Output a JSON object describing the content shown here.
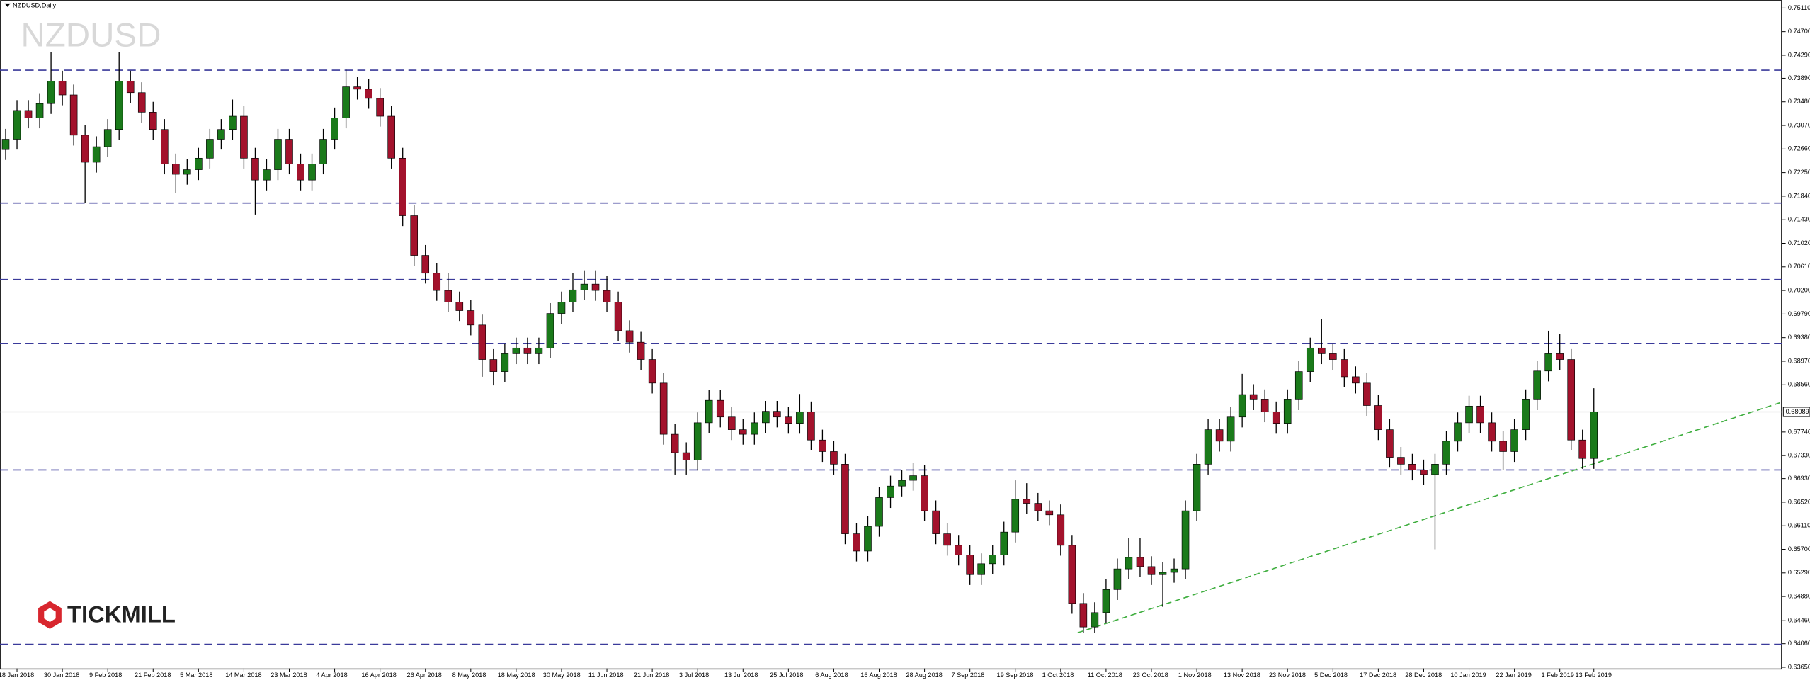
{
  "chart_data": {
    "type": "candlestick",
    "title": "NZDUSD,Daily",
    "watermark": "NZDUSD",
    "logo": "TICKMILL",
    "bull_color": "#1a7a1a",
    "bear_color": "#a3122c",
    "level_color": "#3a3a9a",
    "trend_color": "#3fae3f",
    "open": [
      0.7265,
      0.7283,
      0.7333,
      0.732,
      0.7345,
      0.7384,
      0.736,
      0.729,
      0.7243,
      0.727,
      0.73,
      0.7384,
      0.7364,
      0.733,
      0.73,
      0.724,
      0.7222,
      0.723,
      0.725,
      0.7283,
      0.73,
      0.7323,
      0.725,
      0.7212,
      0.723,
      0.7283,
      0.724,
      0.7212,
      0.724,
      0.7283,
      0.732,
      0.7374,
      0.737,
      0.7354,
      0.7323,
      0.725,
      0.715,
      0.7081,
      0.705,
      0.702,
      0.7,
      0.6985,
      0.696,
      0.69,
      0.6879,
      0.691,
      0.692,
      0.691,
      0.692,
      0.698,
      0.7,
      0.7021,
      0.7031,
      0.702,
      0.7,
      0.695,
      0.693,
      0.69,
      0.6859,
      0.677,
      0.6738,
      0.6725,
      0.679,
      0.6829,
      0.68,
      0.6778,
      0.677,
      0.679,
      0.681,
      0.68,
      0.6789,
      0.6809,
      0.676,
      0.674,
      0.6718,
      0.6597,
      0.6567,
      0.661,
      0.666,
      0.668,
      0.669,
      0.6698,
      0.6637,
      0.6597,
      0.6577,
      0.656,
      0.6526,
      0.6545,
      0.656,
      0.66,
      0.6657,
      0.665,
      0.6637,
      0.663,
      0.6577,
      0.6476,
      0.6435,
      0.646,
      0.65,
      0.6536,
      0.6556,
      0.654,
      0.6526,
      0.653,
      0.6536,
      0.6637,
      0.6718,
      0.6778,
      0.6758,
      0.68,
      0.6839,
      0.683,
      0.6809,
      0.6789,
      0.683,
      0.6879,
      0.692,
      0.691,
      0.69,
      0.687,
      0.6859,
      0.682,
      0.6778,
      0.673,
      0.6718,
      0.6708,
      0.67,
      0.6718,
      0.6758,
      0.679,
      0.6819,
      0.679,
      0.6758,
      0.674,
      0.6778,
      0.683,
      0.688,
      0.691,
      0.69,
      0.676,
      0.6728
    ],
    "high": [
      0.7301,
      0.7351,
      0.7351,
      0.7363,
      0.7434,
      0.7402,
      0.7378,
      0.7308,
      0.7288,
      0.7318,
      0.7434,
      0.7402,
      0.7382,
      0.7348,
      0.7318,
      0.7258,
      0.7248,
      0.7268,
      0.7301,
      0.7318,
      0.7352,
      0.7341,
      0.7268,
      0.7248,
      0.7301,
      0.7301,
      0.7258,
      0.7258,
      0.7301,
      0.7338,
      0.7404,
      0.7392,
      0.7388,
      0.7372,
      0.7341,
      0.7268,
      0.7168,
      0.7099,
      0.7068,
      0.705,
      0.7018,
      0.7003,
      0.6978,
      0.6918,
      0.6928,
      0.6938,
      0.6938,
      0.6938,
      0.6998,
      0.7018,
      0.705,
      0.7055,
      0.7055,
      0.7045,
      0.7018,
      0.6968,
      0.6948,
      0.6918,
      0.6877,
      0.6788,
      0.6756,
      0.6808,
      0.6847,
      0.6847,
      0.6818,
      0.6796,
      0.6808,
      0.6828,
      0.6828,
      0.6818,
      0.684,
      0.6827,
      0.6778,
      0.6758,
      0.6736,
      0.6615,
      0.6628,
      0.6678,
      0.6698,
      0.6708,
      0.672,
      0.6716,
      0.6655,
      0.6615,
      0.6595,
      0.6578,
      0.6563,
      0.6578,
      0.6618,
      0.669,
      0.6685,
      0.6668,
      0.6655,
      0.6648,
      0.6595,
      0.6494,
      0.6478,
      0.6518,
      0.6554,
      0.659,
      0.659,
      0.6558,
      0.6548,
      0.6554,
      0.6655,
      0.6736,
      0.6796,
      0.6796,
      0.6818,
      0.6875,
      0.6857,
      0.6848,
      0.6827,
      0.6848,
      0.6897,
      0.6938,
      0.697,
      0.6928,
      0.6918,
      0.6888,
      0.6877,
      0.6838,
      0.6796,
      0.6748,
      0.6736,
      0.6726,
      0.6736,
      0.6776,
      0.6808,
      0.6837,
      0.6837,
      0.6808,
      0.6776,
      0.6796,
      0.6848,
      0.6898,
      0.695,
      0.6945,
      0.6918,
      0.6778,
      0.685
    ],
    "low": [
      0.7247,
      0.7265,
      0.7302,
      0.7302,
      0.7327,
      0.7342,
      0.7272,
      0.7172,
      0.7225,
      0.7252,
      0.7282,
      0.7346,
      0.7312,
      0.7282,
      0.7222,
      0.719,
      0.7204,
      0.7212,
      0.7232,
      0.7265,
      0.7282,
      0.7232,
      0.7152,
      0.7194,
      0.7212,
      0.7222,
      0.7194,
      0.7194,
      0.7222,
      0.7265,
      0.7302,
      0.7352,
      0.7336,
      0.7305,
      0.7232,
      0.7132,
      0.7063,
      0.7032,
      0.7002,
      0.6982,
      0.6967,
      0.6942,
      0.687,
      0.6855,
      0.6861,
      0.6892,
      0.6892,
      0.6892,
      0.6902,
      0.6962,
      0.6982,
      0.7003,
      0.7002,
      0.6982,
      0.6932,
      0.6912,
      0.6882,
      0.6841,
      0.6752,
      0.67,
      0.67,
      0.6707,
      0.6772,
      0.6782,
      0.676,
      0.6752,
      0.6752,
      0.6772,
      0.6782,
      0.6771,
      0.6771,
      0.6742,
      0.6722,
      0.67,
      0.6579,
      0.6549,
      0.6549,
      0.6592,
      0.6642,
      0.6662,
      0.6672,
      0.6619,
      0.6579,
      0.6559,
      0.6542,
      0.6508,
      0.6508,
      0.6527,
      0.6542,
      0.6582,
      0.6632,
      0.6619,
      0.6612,
      0.6559,
      0.6458,
      0.6425,
      0.6425,
      0.6442,
      0.6482,
      0.6518,
      0.6522,
      0.6508,
      0.647,
      0.6512,
      0.6518,
      0.6619,
      0.67,
      0.674,
      0.674,
      0.6782,
      0.6812,
      0.6791,
      0.6771,
      0.6771,
      0.6812,
      0.6861,
      0.6892,
      0.6882,
      0.6852,
      0.6841,
      0.6802,
      0.676,
      0.6712,
      0.67,
      0.669,
      0.6682,
      0.657,
      0.67,
      0.674,
      0.6772,
      0.6772,
      0.674,
      0.6708,
      0.6722,
      0.676,
      0.6812,
      0.6862,
      0.6882,
      0.6742,
      0.671,
      0.671
    ],
    "close": [
      0.7283,
      0.7333,
      0.732,
      0.7345,
      0.7384,
      0.736,
      0.729,
      0.7243,
      0.727,
      0.73,
      0.7384,
      0.7364,
      0.733,
      0.73,
      0.724,
      0.7222,
      0.723,
      0.725,
      0.7283,
      0.73,
      0.7323,
      0.725,
      0.7212,
      0.723,
      0.7283,
      0.724,
      0.7212,
      0.724,
      0.7283,
      0.732,
      0.7374,
      0.737,
      0.7354,
      0.7323,
      0.725,
      0.715,
      0.7081,
      0.705,
      0.702,
      0.7,
      0.6985,
      0.696,
      0.69,
      0.6879,
      0.691,
      0.692,
      0.691,
      0.692,
      0.698,
      0.7,
      0.7021,
      0.7031,
      0.702,
      0.7,
      0.695,
      0.693,
      0.69,
      0.6859,
      0.677,
      0.6738,
      0.6725,
      0.679,
      0.6829,
      0.68,
      0.6778,
      0.677,
      0.679,
      0.681,
      0.68,
      0.6789,
      0.6809,
      0.676,
      0.674,
      0.6718,
      0.6597,
      0.6567,
      0.661,
      0.666,
      0.668,
      0.669,
      0.6698,
      0.6637,
      0.6597,
      0.6577,
      0.656,
      0.6526,
      0.6545,
      0.656,
      0.66,
      0.6657,
      0.665,
      0.6637,
      0.663,
      0.6577,
      0.6476,
      0.6435,
      0.646,
      0.65,
      0.6536,
      0.6556,
      0.654,
      0.6526,
      0.653,
      0.6536,
      0.6637,
      0.6718,
      0.6778,
      0.6758,
      0.68,
      0.6839,
      0.683,
      0.6809,
      0.6789,
      0.683,
      0.6879,
      0.692,
      0.691,
      0.69,
      0.687,
      0.6859,
      0.682,
      0.6778,
      0.673,
      0.6718,
      0.6708,
      0.67,
      0.6718,
      0.6758,
      0.679,
      0.6819,
      0.679,
      0.6758,
      0.674,
      0.6778,
      0.683,
      0.688,
      0.691,
      0.69,
      0.676,
      0.6728,
      0.68089
    ],
    "last_price": 0.68089,
    "levels": [
      0.7403,
      0.7172,
      0.7039,
      0.6928,
      0.6708,
      0.6405
    ],
    "trendline": {
      "x": [
        94.5,
        156.6
      ],
      "y": [
        0.6425,
        0.6826
      ]
    },
    "xlim": [
      -0.5,
      156.6
    ],
    "ylim": [
      0.6363,
      0.7525
    ],
    "xticks": [
      {
        "value": 1,
        "label": "18 Jan 2018"
      },
      {
        "value": 5,
        "label": "30 Jan 2018"
      },
      {
        "value": 9,
        "label": "9 Feb 2018"
      },
      {
        "value": 13,
        "label": "21 Feb 2018"
      },
      {
        "value": 17,
        "label": "5 Mar 2018"
      },
      {
        "value": 21,
        "label": "14 Mar 2018"
      },
      {
        "value": 25,
        "label": "23 Mar 2018"
      },
      {
        "value": 29,
        "label": "4 Apr 2018"
      },
      {
        "value": 33,
        "label": "16 Apr 2018"
      },
      {
        "value": 37,
        "label": "26 Apr 2018"
      },
      {
        "value": 41,
        "label": "8 May 2018"
      },
      {
        "value": 45,
        "label": "18 May 2018"
      },
      {
        "value": 49,
        "label": "30 May 2018"
      },
      {
        "value": 53,
        "label": "11 Jun 2018"
      },
      {
        "value": 57,
        "label": "21 Jun 2018"
      },
      {
        "value": 61,
        "label": "3 Jul 2018"
      },
      {
        "value": 65,
        "label": "13 Jul 2018"
      },
      {
        "value": 69,
        "label": "25 Jul 2018"
      },
      {
        "value": 73,
        "label": "6 Aug 2018"
      },
      {
        "value": 77,
        "label": "16 Aug 2018"
      },
      {
        "value": 81,
        "label": "28 Aug 2018"
      },
      {
        "value": 85,
        "label": "7 Sep 2018"
      },
      {
        "value": 89,
        "label": "19 Sep 2018"
      },
      {
        "value": 93,
        "label": "1 Oct 2018"
      },
      {
        "value": 97,
        "label": "11 Oct 2018"
      },
      {
        "value": 101,
        "label": "23 Oct 2018"
      },
      {
        "value": 105,
        "label": "1 Nov 2018"
      },
      {
        "value": 109,
        "label": "13 Nov 2018"
      },
      {
        "value": 113,
        "label": "23 Nov 2018"
      },
      {
        "value": 117,
        "label": "5 Dec 2018"
      },
      {
        "value": 121,
        "label": "17 Dec 2018"
      },
      {
        "value": 125,
        "label": "28 Dec 2018"
      },
      {
        "value": 129,
        "label": "10 Jan 2019"
      },
      {
        "value": 133,
        "label": "22 Jan 2019"
      },
      {
        "value": 137,
        "label": "1 Feb 2019"
      },
      {
        "value": 140,
        "label": "13 Feb 2019"
      }
    ],
    "yticks": [
      {
        "value": 0.7511,
        "label": "0.75110"
      },
      {
        "value": 0.747,
        "label": "0.74700"
      },
      {
        "value": 0.7429,
        "label": "0.74290"
      },
      {
        "value": 0.7389,
        "label": "0.73890"
      },
      {
        "value": 0.7348,
        "label": "0.73480"
      },
      {
        "value": 0.7307,
        "label": "0.73070"
      },
      {
        "value": 0.7266,
        "label": "0.72660"
      },
      {
        "value": 0.7225,
        "label": "0.72250"
      },
      {
        "value": 0.7184,
        "label": "0.71840"
      },
      {
        "value": 0.7143,
        "label": "0.71430"
      },
      {
        "value": 0.7102,
        "label": "0.71020"
      },
      {
        "value": 0.7061,
        "label": "0.70610"
      },
      {
        "value": 0.702,
        "label": "0.70200"
      },
      {
        "value": 0.6979,
        "label": "0.69790"
      },
      {
        "value": 0.6938,
        "label": "0.69380"
      },
      {
        "value": 0.6897,
        "label": "0.68970"
      },
      {
        "value": 0.6856,
        "label": "0.68560"
      },
      {
        "value": 0.6774,
        "label": "0.67740"
      },
      {
        "value": 0.6733,
        "label": "0.67330"
      },
      {
        "value": 0.6693,
        "label": "0.66930"
      },
      {
        "value": 0.6652,
        "label": "0.66520"
      },
      {
        "value": 0.6611,
        "label": "0.66110"
      },
      {
        "value": 0.657,
        "label": "0.65700"
      },
      {
        "value": 0.6529,
        "label": "0.65290"
      },
      {
        "value": 0.6488,
        "label": "0.64880"
      },
      {
        "value": 0.6446,
        "label": "0.64460"
      },
      {
        "value": 0.6406,
        "label": "0.64060"
      },
      {
        "value": 0.6365,
        "label": "0.63650"
      }
    ]
  }
}
